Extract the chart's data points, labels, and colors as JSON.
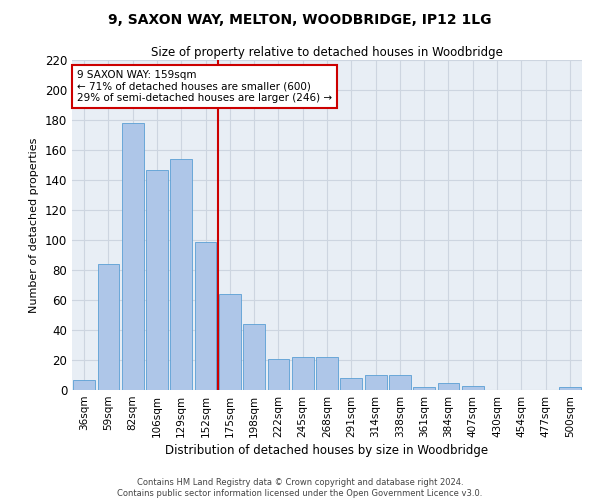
{
  "title_line1": "9, SAXON WAY, MELTON, WOODBRIDGE, IP12 1LG",
  "title_line2": "Size of property relative to detached houses in Woodbridge",
  "xlabel": "Distribution of detached houses by size in Woodbridge",
  "ylabel": "Number of detached properties",
  "categories": [
    "36sqm",
    "59sqm",
    "82sqm",
    "106sqm",
    "129sqm",
    "152sqm",
    "175sqm",
    "198sqm",
    "222sqm",
    "245sqm",
    "268sqm",
    "291sqm",
    "314sqm",
    "338sqm",
    "361sqm",
    "384sqm",
    "407sqm",
    "430sqm",
    "454sqm",
    "477sqm",
    "500sqm"
  ],
  "values": [
    7,
    84,
    178,
    147,
    154,
    99,
    64,
    44,
    21,
    22,
    22,
    8,
    10,
    10,
    2,
    5,
    3,
    0,
    0,
    0,
    2
  ],
  "bar_color": "#aec6e8",
  "bar_edge_color": "#5a9fd4",
  "vline_index": 5,
  "annotation_line1": "9 SAXON WAY: 159sqm",
  "annotation_line2": "← 71% of detached houses are smaller (600)",
  "annotation_line3": "29% of semi-detached houses are larger (246) →",
  "annotation_box_color": "#ffffff",
  "annotation_box_edge_color": "#cc0000",
  "vline_color": "#cc0000",
  "grid_color": "#cdd5e0",
  "background_color": "#e8eef5",
  "footer_line1": "Contains HM Land Registry data © Crown copyright and database right 2024.",
  "footer_line2": "Contains public sector information licensed under the Open Government Licence v3.0.",
  "ylim": [
    0,
    220
  ],
  "yticks": [
    0,
    20,
    40,
    60,
    80,
    100,
    120,
    140,
    160,
    180,
    200,
    220
  ]
}
